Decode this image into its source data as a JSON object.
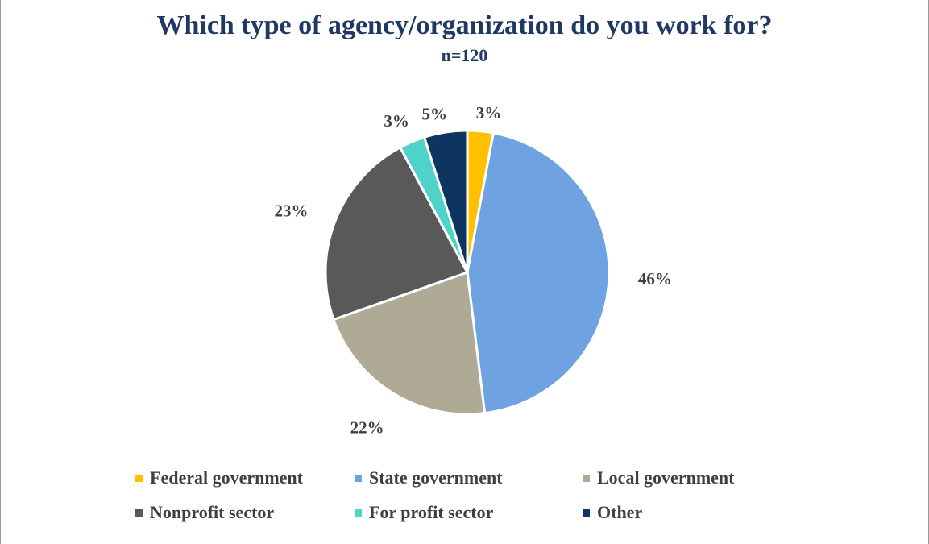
{
  "chart_data": {
    "type": "pie",
    "title": "Which type of agency/organization do you work for?",
    "subtitle": "n=120",
    "categories": [
      "Federal government",
      "State government",
      "Local government",
      "Nonprofit sector",
      "For profit sector",
      "Other"
    ],
    "values": [
      3,
      46,
      22,
      23,
      3,
      5
    ],
    "labels": [
      "3%",
      "46%",
      "22%",
      "23%",
      "3%",
      "5%"
    ],
    "colors": [
      "#ffc000",
      "#6fa2e0",
      "#aeaa95",
      "#595959",
      "#4fd3c8",
      "#0d3560"
    ],
    "legend_position": "bottom"
  }
}
